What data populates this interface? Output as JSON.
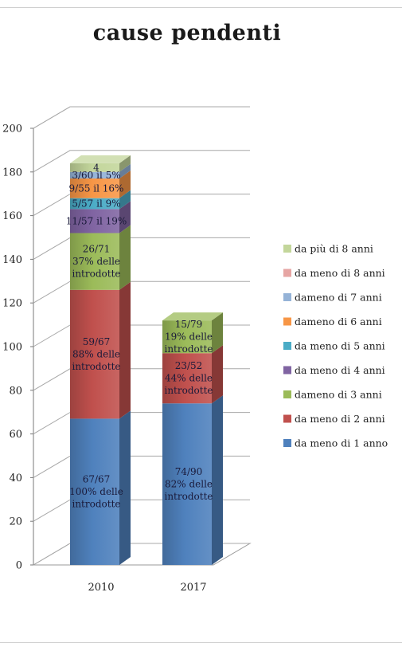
{
  "chart_data": {
    "type": "stacked-bar-3d",
    "title": "cause pendenti",
    "categories": [
      "2010",
      "2017"
    ],
    "ylim": [
      0,
      200
    ],
    "yticks": [
      0,
      20,
      40,
      60,
      80,
      100,
      120,
      140,
      160,
      180,
      200
    ],
    "grid": true,
    "legend_position": "right",
    "series": [
      {
        "name": "da meno di 1 anno",
        "color": "#4f81bd",
        "values": [
          67,
          74
        ],
        "labels": [
          [
            "67/67",
            "100% delle",
            "introdotte"
          ],
          [
            "74/90",
            "82% delle",
            "introdotte"
          ]
        ]
      },
      {
        "name": "da meno di 2 anni",
        "color": "#c0504d",
        "values": [
          59,
          23
        ],
        "labels": [
          [
            "59/67",
            "88% delle",
            "introdotte"
          ],
          [
            "23/52",
            "44% delle",
            "introdotte"
          ]
        ]
      },
      {
        "name": "dameno di 3 anni",
        "color": "#9bbb59",
        "values": [
          26,
          15
        ],
        "labels": [
          [
            "26/71",
            "37% delle",
            "introdotte"
          ],
          [
            "15/79",
            "19% delle",
            "introdotte"
          ]
        ]
      },
      {
        "name": "da meno di 4 anni",
        "color": "#8064a2",
        "values": [
          11,
          0
        ],
        "labels": [
          [
            "11/57 il 19%"
          ],
          []
        ]
      },
      {
        "name": "da meno di 5 anni",
        "color": "#4bacc6",
        "values": [
          5,
          0
        ],
        "labels": [
          [
            "5/57 il 9%"
          ],
          []
        ]
      },
      {
        "name": "dameno di 6 anni",
        "color": "#f79646",
        "values": [
          9,
          0
        ],
        "labels": [
          [
            "9/55 il 16%"
          ],
          []
        ]
      },
      {
        "name": "dameno di 7 anni",
        "color": "#95b3d7",
        "values": [
          3,
          0
        ],
        "labels": [
          [
            "3/60 il  5%"
          ],
          []
        ]
      },
      {
        "name": "da meno di 8 anni",
        "color": "#e6a5a3",
        "values": [
          0,
          0
        ],
        "labels": [
          [],
          []
        ]
      },
      {
        "name": "da più di 8 anni",
        "color": "#c3d69b",
        "values": [
          4,
          0
        ],
        "labels": [
          [
            "4"
          ],
          []
        ]
      }
    ],
    "legend_order": [
      "da più di 8 anni",
      "da meno di 8 anni",
      "dameno di 7 anni",
      "dameno di 6 anni",
      "da meno di 5 anni",
      "da meno di 4 anni",
      "dameno di 3 anni",
      "da meno di 2 anni",
      "da meno di 1 anno"
    ]
  }
}
